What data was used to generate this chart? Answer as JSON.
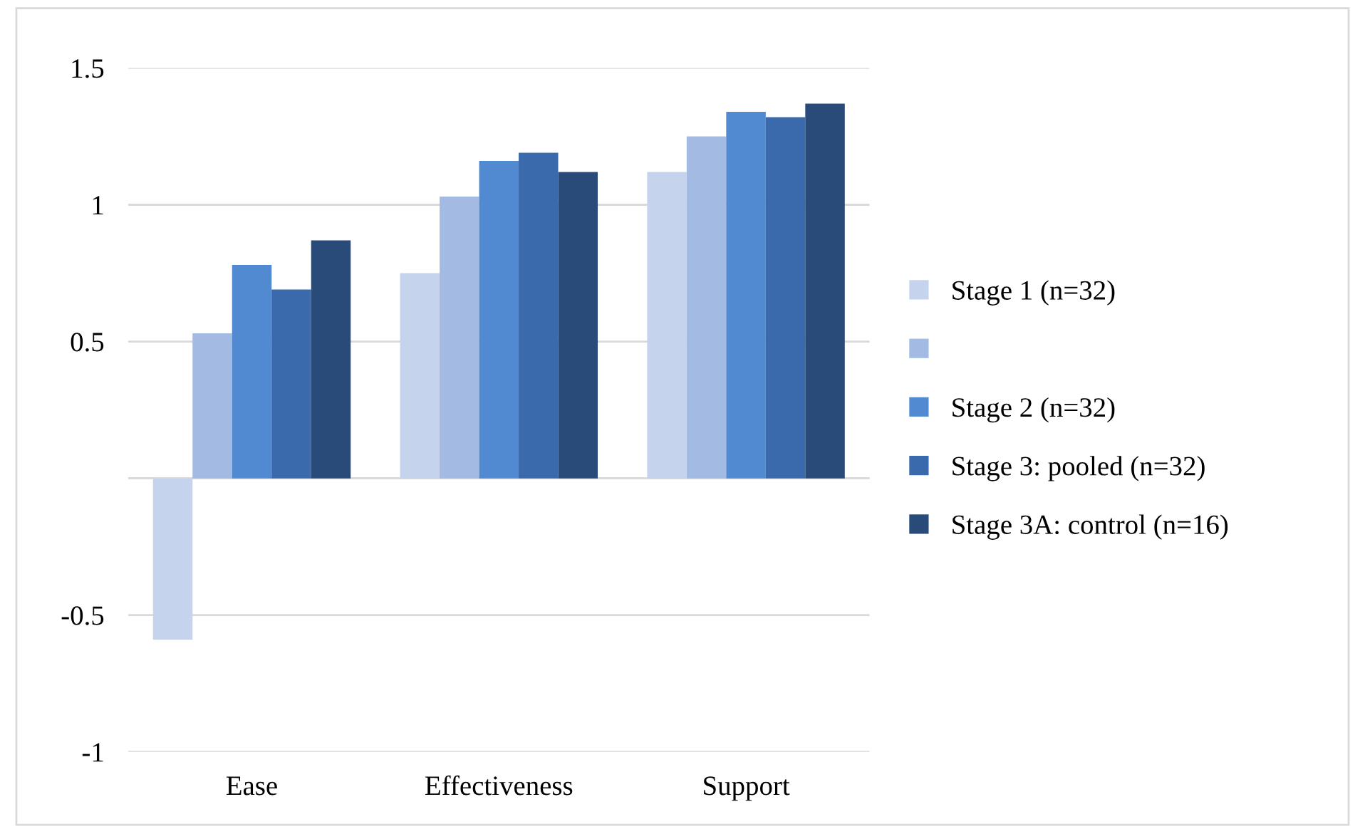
{
  "chart_data": {
    "type": "bar",
    "categories": [
      "Ease",
      "Effectiveness",
      "Support"
    ],
    "series": [
      {
        "name": "Stage 1 (n=32)",
        "color": "#c5d4ec",
        "values": [
          -0.59,
          0.75,
          1.12
        ]
      },
      {
        "color": "#a3bbe3",
        "values": [
          0.53,
          1.03,
          1.25
        ]
      },
      {
        "name": "Stage 2 (n=32)",
        "color": "#518ad1",
        "values": [
          0.78,
          1.16,
          1.34
        ]
      },
      {
        "name": "Stage 3: pooled (n=32)",
        "color": "#3a6aab",
        "values": [
          0.69,
          1.19,
          1.32
        ]
      },
      {
        "name": "Stage 3A: control (n=16)",
        "color": "#284b7a",
        "values": [
          0.87,
          1.12,
          1.37
        ]
      }
    ],
    "ylim": [
      -1,
      1.5
    ],
    "yticks": [
      -1,
      -0.5,
      {
        "value": 0,
        "label": null
      },
      0.5,
      1,
      1.5
    ],
    "grid": "y",
    "legend": "right"
  }
}
